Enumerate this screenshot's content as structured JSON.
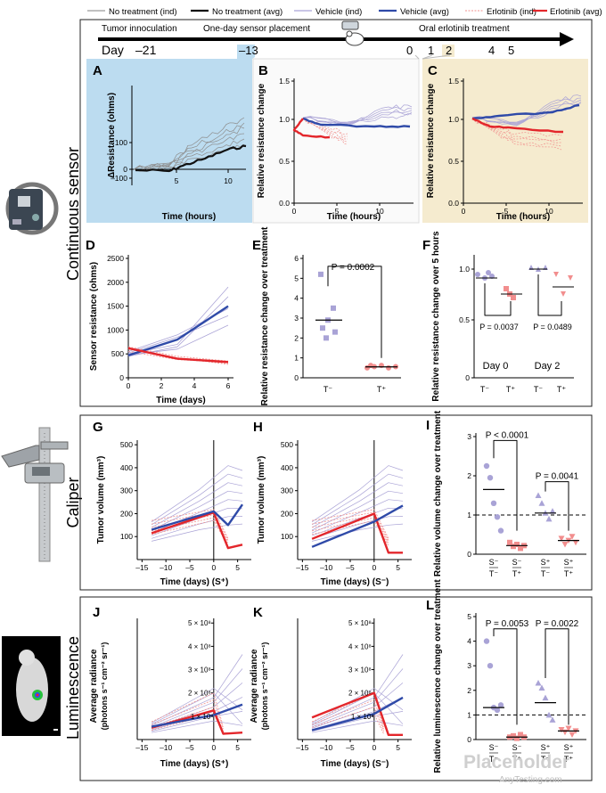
{
  "legend": {
    "items": [
      {
        "label": "No treatment (ind)",
        "color": "#9a9a9a",
        "style": "thin"
      },
      {
        "label": "No treatment (avg)",
        "color": "#111111",
        "style": "thick"
      },
      {
        "label": "Vehicle (ind)",
        "color": "#a9a3d6",
        "style": "thin"
      },
      {
        "label": "Vehicle (avg)",
        "color": "#2f4aa8",
        "style": "thick"
      },
      {
        "label": "Erlotinib (ind)",
        "color": "#f1928f",
        "style": "dashed"
      },
      {
        "label": "Erlotinib (avg)",
        "color": "#e3262b",
        "style": "thick"
      }
    ]
  },
  "timeline": {
    "day_label": "Day",
    "event_tumor": "Tumor innoculation",
    "event_sensor": "One-day sensor placement",
    "event_oral": "Oral erlotinib treatment",
    "ticks": [
      "–21",
      "–13",
      "0",
      "1",
      "2",
      "4",
      "5"
    ]
  },
  "sections": {
    "continuous": "Continuous sensor",
    "caliper": "Caliper",
    "luminescence": "Luminescence"
  },
  "panels": {
    "A": {
      "letter": "A",
      "ylabel": "ΔResistance (ohms)",
      "xlabel": "Time (hours)",
      "yticks": [
        "–100",
        "0",
        "100"
      ],
      "xticks": [
        "5",
        "10"
      ]
    },
    "B": {
      "letter": "B",
      "ylabel": "Relative resistance change",
      "xlabel": "Time (hours)",
      "yticks": [
        "1.5",
        "1.0",
        "0.5",
        "0.0"
      ],
      "xticks": [
        "0",
        "5",
        "10"
      ]
    },
    "C": {
      "letter": "C",
      "ylabel": "Relative resistance change",
      "xlabel": "Time (hours)",
      "yticks": [
        "1.5",
        "1.0",
        "0.5",
        "0.0"
      ],
      "xticks": [
        "0",
        "5",
        "10"
      ]
    },
    "D": {
      "letter": "D",
      "ylabel": "Sensor resistance (ohms)",
      "xlabel": "Time (days)",
      "yticks": [
        "0",
        "500",
        "1000",
        "1500",
        "2000",
        "2500"
      ],
      "xticks": [
        "0",
        "2",
        "4",
        "6"
      ]
    },
    "E": {
      "letter": "E",
      "ylabel": "Relative resistance change over treatment",
      "pvalue": "P = 0.0002",
      "yticks": [
        "0",
        "1",
        "2",
        "3",
        "4",
        "5",
        "6"
      ],
      "groups": [
        "T⁻",
        "T⁺"
      ]
    },
    "F": {
      "letter": "F",
      "ylabel": "Relative resistance change over 5 hours",
      "p1": "P = 0.0037",
      "p2": "P = 0.0489",
      "day0": "Day 0",
      "day2": "Day 2",
      "yticks": [
        "0",
        "0.5",
        "1.0"
      ],
      "groups": [
        "T⁻",
        "T⁺",
        "T⁻",
        "T⁺"
      ]
    },
    "G": {
      "letter": "G",
      "ylabel": "Tumor volume (mm³)",
      "xlabel": "Time (days) (S⁺)",
      "yticks": [
        "100",
        "200",
        "300",
        "400",
        "500"
      ],
      "xticks": [
        "–15",
        "–10",
        "–5",
        "0",
        "5"
      ]
    },
    "H": {
      "letter": "H",
      "ylabel": "Tumor volume (mm³)",
      "xlabel": "Time (days) (S⁻)",
      "yticks": [
        "100",
        "200",
        "300",
        "400",
        "500"
      ],
      "xticks": [
        "–15",
        "–10",
        "–5",
        "0",
        "5"
      ]
    },
    "I": {
      "letter": "I",
      "ylabel": "Relative volume change over treatment",
      "p1": "P < 0.0001",
      "p2": "P = 0.0041",
      "yticks": [
        "0",
        "1",
        "2",
        "3"
      ],
      "groups_top": [
        "S⁻",
        "S⁻",
        "S⁺",
        "S⁺"
      ],
      "groups_bottom": [
        "T⁻",
        "T⁺",
        "T⁻",
        "T⁺"
      ]
    },
    "J": {
      "letter": "J",
      "ylabel1": "Average radiance",
      "ylabel2": "(photons s⁻¹ cm⁻² sr⁻¹)",
      "xlabel": "Time (days) (S⁺)",
      "yticks": [
        "1 × 10⁸",
        "2 × 10⁸",
        "3 × 10⁸",
        "4 × 10⁸",
        "5 × 10⁸"
      ],
      "xticks": [
        "–15",
        "–10",
        "–5",
        "0",
        "5"
      ]
    },
    "K": {
      "letter": "K",
      "ylabel1": "Average radiance",
      "ylabel2": "(photons s⁻¹ cm⁻² sr⁻¹)",
      "xlabel": "Time (days) (S⁻)",
      "yticks": [
        "1 × 10⁸",
        "2 × 10⁸",
        "3 × 10⁸",
        "4 × 10⁸",
        "5 × 10⁸"
      ],
      "xticks": [
        "–15",
        "–10",
        "–5",
        "0",
        "5"
      ]
    },
    "L": {
      "letter": "L",
      "ylabel": "Relative luminescence change over treatment",
      "p1": "P = 0.0053",
      "p2": "P = 0.0022",
      "yticks": [
        "0",
        "1",
        "2",
        "3",
        "4",
        "5"
      ],
      "groups_top": [
        "S⁻",
        "S⁻",
        "S⁺",
        "S⁺"
      ],
      "groups_bottom": [
        "T⁻",
        "T⁺",
        "T⁻",
        "T⁺"
      ]
    }
  },
  "watermark": {
    "cn": "Placeholder",
    "en": "AnyTesting.com"
  }
}
